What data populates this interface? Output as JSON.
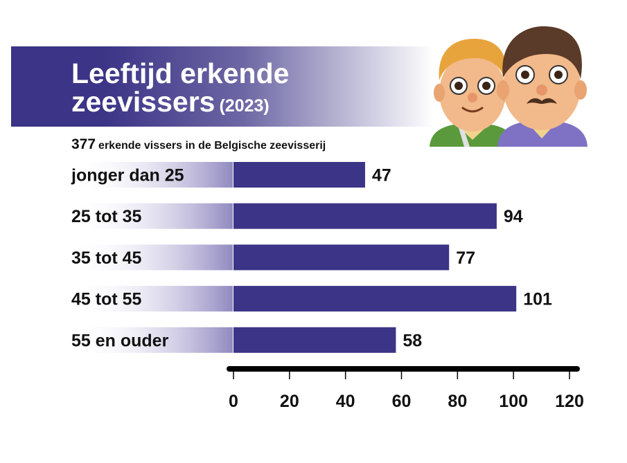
{
  "title": {
    "line1": "Leeftijd erkende",
    "line2": "zeevissers",
    "year": "(2023)"
  },
  "subtitle": {
    "total": "377",
    "text": "erkende vissers in de Belgische zeevisserij"
  },
  "colors": {
    "bar": "#3c3486",
    "axis": "#000000",
    "title_band": "#3c3486"
  },
  "illustration": {
    "icon": "two-fishermen-faces"
  },
  "chart_data": {
    "type": "bar",
    "orientation": "horizontal",
    "title": "Leeftijd erkende zeevissers (2023)",
    "subtitle": "377 erkende vissers in de Belgische zeevisserij",
    "categories": [
      "jonger dan 25",
      "25 tot 35",
      "35 tot 45",
      "45 tot 55",
      "55 en ouder"
    ],
    "values": [
      47,
      94,
      77,
      101,
      58
    ],
    "xlim": [
      0,
      120
    ],
    "xticks": [
      0,
      20,
      40,
      60,
      80,
      100,
      120
    ],
    "xlabel": "",
    "ylabel": "",
    "grid": false,
    "legend": "none"
  }
}
